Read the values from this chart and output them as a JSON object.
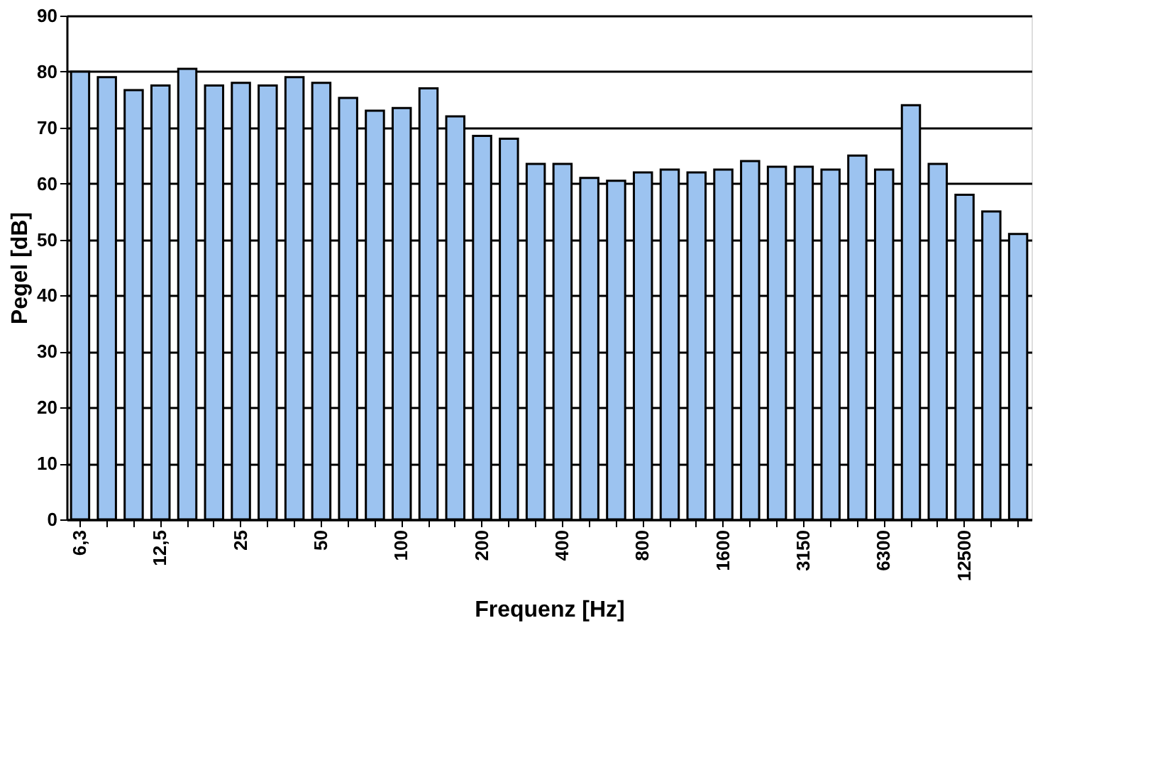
{
  "chart_data": {
    "type": "bar",
    "xlabel": "Frequenz [Hz]",
    "ylabel": "Pegel [dB]",
    "categories": [
      "6,3",
      null,
      null,
      "12,5",
      null,
      null,
      "25",
      null,
      null,
      "50",
      null,
      null,
      "100",
      null,
      null,
      "200",
      null,
      null,
      "400",
      null,
      null,
      "800",
      null,
      null,
      "1600",
      null,
      null,
      "3150",
      null,
      null,
      "6300",
      null,
      null,
      "12500",
      null,
      null
    ],
    "values": [
      80,
      79,
      76.7,
      77.5,
      80.5,
      77.5,
      78,
      77.5,
      79,
      78,
      75.3,
      73,
      73.5,
      77,
      72,
      68.5,
      68,
      63.5,
      63.5,
      61,
      60.5,
      62,
      62.5,
      62,
      62.5,
      64,
      63,
      63,
      62.5,
      65,
      62.5,
      74,
      63.5,
      58,
      55,
      51
    ],
    "color": "#9cc3f0",
    "ylim": [
      0,
      90
    ],
    "yticks": [
      0,
      10,
      20,
      30,
      40,
      50,
      60,
      70,
      80,
      90
    ],
    "grid": "y"
  }
}
